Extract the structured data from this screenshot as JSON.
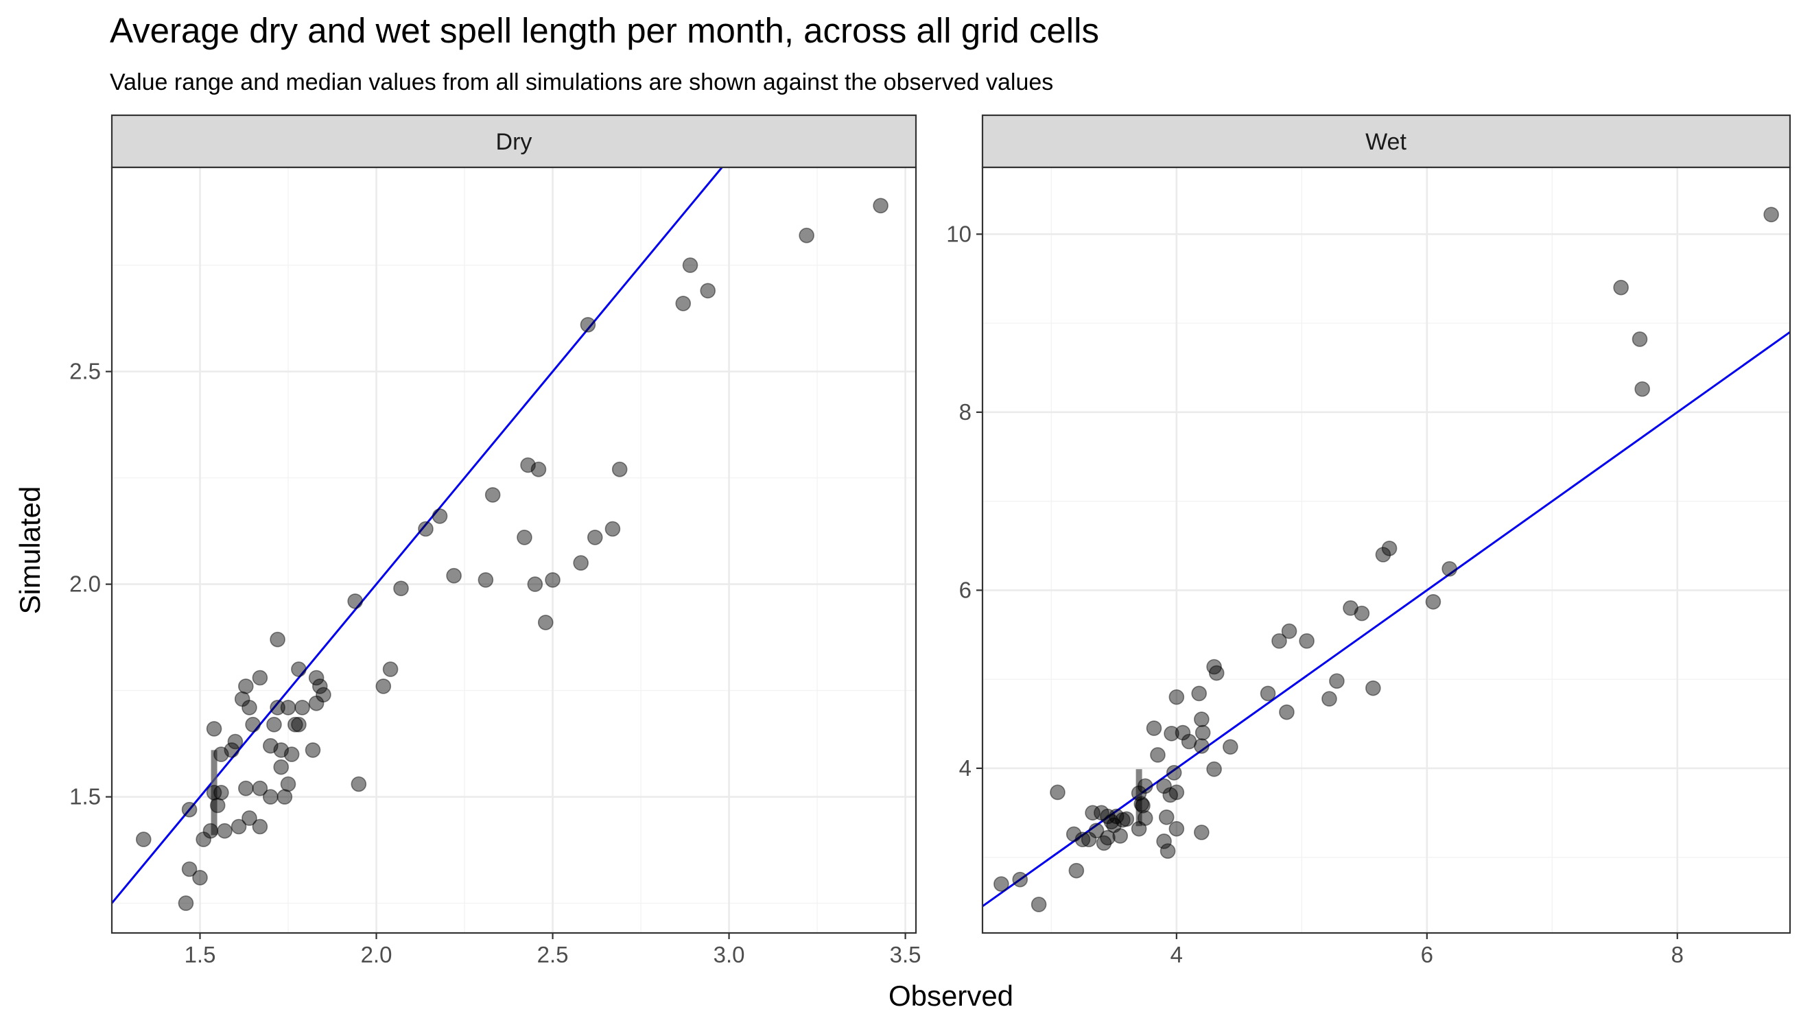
{
  "figure": {
    "title": "Average dry and wet spell length per month, across all grid cells",
    "subtitle": "Value range and median values from all simulations are shown against the observed values",
    "xlabel": "Observed",
    "ylabel": "Simulated",
    "colors": {
      "points": "#000000",
      "reference_line": "#0000ee",
      "strip": "#d9d9d9",
      "range": "#5a5a5a"
    }
  },
  "chart_data": [
    {
      "type": "scatter",
      "panel": "Dry",
      "xlim": [
        1.25,
        3.53
      ],
      "ylim": [
        1.18,
        2.98
      ],
      "x_ticks": [
        1.5,
        2.0,
        2.5,
        3.0,
        3.5
      ],
      "x_tick_labels": [
        "1.5",
        "2.0",
        "2.5",
        "3.0",
        "3.5"
      ],
      "y_ticks": [
        1.5,
        2.0,
        2.5
      ],
      "y_tick_labels": [
        "1.5",
        "2.0",
        "2.5"
      ],
      "reference_line": {
        "slope": 1,
        "intercept": 0
      },
      "range_bars": [
        {
          "x": 1.54,
          "ymin": 1.41,
          "ymax": 1.61
        }
      ],
      "points": [
        [
          1.34,
          1.4
        ],
        [
          1.46,
          1.25
        ],
        [
          1.47,
          1.33
        ],
        [
          1.47,
          1.47
        ],
        [
          1.5,
          1.31
        ],
        [
          1.51,
          1.4
        ],
        [
          1.53,
          1.42
        ],
        [
          1.54,
          1.51
        ],
        [
          1.54,
          1.66
        ],
        [
          1.55,
          1.48
        ],
        [
          1.56,
          1.51
        ],
        [
          1.56,
          1.6
        ],
        [
          1.57,
          1.42
        ],
        [
          1.59,
          1.61
        ],
        [
          1.6,
          1.63
        ],
        [
          1.61,
          1.43
        ],
        [
          1.62,
          1.73
        ],
        [
          1.63,
          1.76
        ],
        [
          1.63,
          1.52
        ],
        [
          1.64,
          1.71
        ],
        [
          1.64,
          1.45
        ],
        [
          1.65,
          1.67
        ],
        [
          1.67,
          1.52
        ],
        [
          1.67,
          1.43
        ],
        [
          1.67,
          1.78
        ],
        [
          1.7,
          1.5
        ],
        [
          1.7,
          1.62
        ],
        [
          1.71,
          1.67
        ],
        [
          1.72,
          1.87
        ],
        [
          1.72,
          1.71
        ],
        [
          1.73,
          1.57
        ],
        [
          1.73,
          1.61
        ],
        [
          1.74,
          1.5
        ],
        [
          1.75,
          1.71
        ],
        [
          1.75,
          1.53
        ],
        [
          1.76,
          1.6
        ],
        [
          1.77,
          1.67
        ],
        [
          1.78,
          1.67
        ],
        [
          1.78,
          1.8
        ],
        [
          1.79,
          1.71
        ],
        [
          1.82,
          1.61
        ],
        [
          1.83,
          1.72
        ],
        [
          1.83,
          1.78
        ],
        [
          1.84,
          1.76
        ],
        [
          1.85,
          1.74
        ],
        [
          1.94,
          1.96
        ],
        [
          1.95,
          1.53
        ],
        [
          2.02,
          1.76
        ],
        [
          2.04,
          1.8
        ],
        [
          2.07,
          1.99
        ],
        [
          2.14,
          2.13
        ],
        [
          2.18,
          2.16
        ],
        [
          2.22,
          2.02
        ],
        [
          2.31,
          2.01
        ],
        [
          2.33,
          2.21
        ],
        [
          2.42,
          2.11
        ],
        [
          2.43,
          2.28
        ],
        [
          2.45,
          2.0
        ],
        [
          2.46,
          2.27
        ],
        [
          2.48,
          1.91
        ],
        [
          2.5,
          2.01
        ],
        [
          2.58,
          2.05
        ],
        [
          2.6,
          2.61
        ],
        [
          2.62,
          2.11
        ],
        [
          2.67,
          2.13
        ],
        [
          2.69,
          2.27
        ],
        [
          2.87,
          2.66
        ],
        [
          2.89,
          2.75
        ],
        [
          2.94,
          2.69
        ],
        [
          3.22,
          2.82
        ],
        [
          3.43,
          2.89
        ]
      ]
    },
    {
      "type": "scatter",
      "panel": "Wet",
      "xlim": [
        2.45,
        8.9
      ],
      "ylim": [
        2.15,
        10.75
      ],
      "x_ticks": [
        4,
        6,
        8
      ],
      "x_tick_labels": [
        "4",
        "6",
        "8"
      ],
      "y_ticks": [
        4,
        6,
        8,
        10
      ],
      "y_tick_labels": [
        "4",
        "6",
        "8",
        "10"
      ],
      "reference_line": {
        "slope": 1,
        "intercept": 0
      },
      "range_bars": [
        {
          "x": 3.7,
          "ymin": 3.35,
          "ymax": 3.99
        }
      ],
      "points": [
        [
          2.6,
          2.7
        ],
        [
          2.75,
          2.75
        ],
        [
          2.9,
          2.47
        ],
        [
          3.05,
          3.73
        ],
        [
          3.18,
          3.26
        ],
        [
          3.2,
          2.85
        ],
        [
          3.25,
          3.2
        ],
        [
          3.3,
          3.2
        ],
        [
          3.33,
          3.5
        ],
        [
          3.36,
          3.3
        ],
        [
          3.4,
          3.5
        ],
        [
          3.42,
          3.16
        ],
        [
          3.45,
          3.46
        ],
        [
          3.45,
          3.22
        ],
        [
          3.48,
          3.4
        ],
        [
          3.5,
          3.36
        ],
        [
          3.52,
          3.46
        ],
        [
          3.55,
          3.24
        ],
        [
          3.57,
          3.42
        ],
        [
          3.6,
          3.43
        ],
        [
          3.7,
          3.32
        ],
        [
          3.7,
          3.72
        ],
        [
          3.72,
          3.6
        ],
        [
          3.73,
          3.58
        ],
        [
          3.75,
          3.8
        ],
        [
          3.75,
          3.44
        ],
        [
          3.82,
          4.45
        ],
        [
          3.85,
          4.15
        ],
        [
          3.9,
          3.18
        ],
        [
          3.9,
          3.8
        ],
        [
          3.92,
          3.45
        ],
        [
          3.93,
          3.07
        ],
        [
          3.95,
          3.7
        ],
        [
          3.96,
          4.39
        ],
        [
          3.98,
          3.95
        ],
        [
          4.0,
          4.8
        ],
        [
          4.0,
          3.73
        ],
        [
          4.0,
          3.32
        ],
        [
          4.05,
          4.4
        ],
        [
          4.1,
          4.3
        ],
        [
          4.18,
          4.84
        ],
        [
          4.2,
          4.25
        ],
        [
          4.2,
          3.28
        ],
        [
          4.2,
          4.55
        ],
        [
          4.21,
          4.4
        ],
        [
          4.3,
          3.99
        ],
        [
          4.3,
          5.14
        ],
        [
          4.32,
          5.07
        ],
        [
          4.43,
          4.24
        ],
        [
          4.73,
          4.84
        ],
        [
          4.82,
          5.43
        ],
        [
          4.88,
          4.63
        ],
        [
          4.9,
          5.54
        ],
        [
          5.04,
          5.43
        ],
        [
          5.22,
          4.78
        ],
        [
          5.28,
          4.98
        ],
        [
          5.39,
          5.8
        ],
        [
          5.48,
          5.74
        ],
        [
          5.57,
          4.9
        ],
        [
          5.65,
          6.4
        ],
        [
          5.7,
          6.47
        ],
        [
          6.05,
          5.87
        ],
        [
          6.18,
          6.24
        ],
        [
          7.55,
          9.4
        ],
        [
          7.7,
          8.82
        ],
        [
          7.72,
          8.26
        ],
        [
          8.75,
          10.22
        ]
      ]
    }
  ]
}
